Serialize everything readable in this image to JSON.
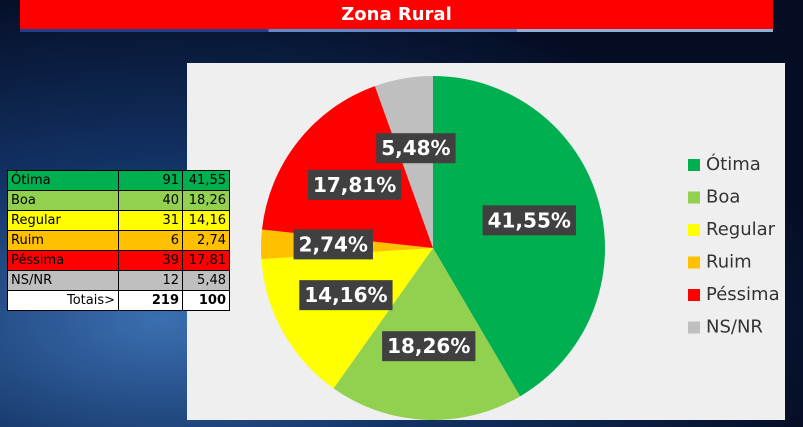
{
  "chart_data": {
    "type": "pie",
    "title": "Zona Rural",
    "categories": [
      "Ótima",
      "Boa",
      "Regular",
      "Ruim",
      "Péssima",
      "NS/NR"
    ],
    "values": [
      41.55,
      18.26,
      14.16,
      2.74,
      17.81,
      5.48
    ],
    "value_labels": [
      "41,55%",
      "18,26%",
      "14,16%",
      "2,74%",
      "17,81%",
      "5,48%"
    ],
    "colors": [
      "#00b050",
      "#92d050",
      "#ffff00",
      "#ffc000",
      "#ff0000",
      "#bfbfbf"
    ],
    "legend": "right"
  },
  "table": {
    "rows": [
      [
        "Ótima",
        "91",
        "41,55"
      ],
      [
        "Boa",
        "40",
        "18,26"
      ],
      [
        "Regular",
        "31",
        "14,16"
      ],
      [
        "Ruim",
        "6",
        "2,74"
      ],
      [
        "Péssima",
        "39",
        "17,81"
      ],
      [
        "NS/NR",
        "12",
        "5,48"
      ],
      [
        "Totais>",
        "219",
        "100"
      ]
    ]
  }
}
